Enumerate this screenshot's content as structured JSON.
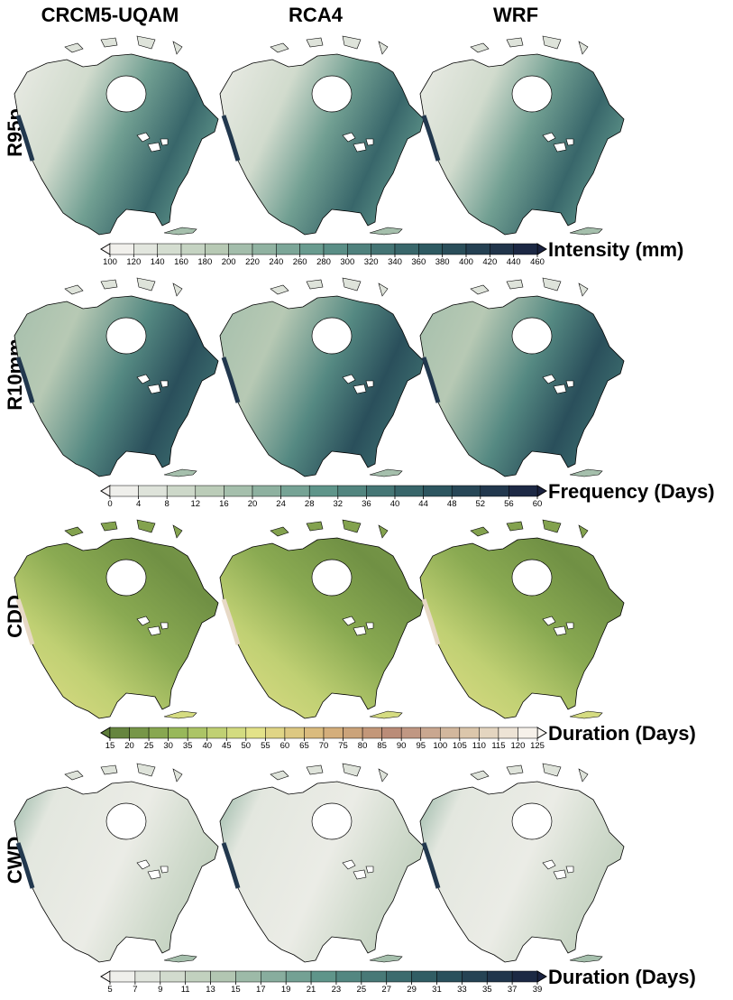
{
  "columns": [
    "CRCM5-UQAM",
    "RCA4",
    "WRF"
  ],
  "rows": [
    {
      "label": "R95p",
      "colorbar": {
        "title": "Intensity (mm)",
        "ticks": [
          100,
          120,
          140,
          160,
          180,
          200,
          220,
          240,
          260,
          280,
          300,
          320,
          340,
          360,
          380,
          400,
          420,
          440,
          460
        ],
        "colors": [
          "#f8f5f3",
          "#b7c9b4",
          "#5f958a",
          "#2e5a62",
          "#1a2240"
        ]
      }
    },
    {
      "label": "R10mm",
      "colorbar": {
        "title": "Frequency (Days)",
        "ticks": [
          0,
          4,
          8,
          12,
          16,
          20,
          24,
          28,
          32,
          36,
          40,
          44,
          48,
          52,
          56,
          60
        ],
        "colors": [
          "#f8f5f3",
          "#b7c9b4",
          "#5f958a",
          "#2e5a62",
          "#1a2240"
        ]
      }
    },
    {
      "label": "CDD",
      "colorbar": {
        "title": "Duration (Days)",
        "ticks": [
          15,
          20,
          25,
          30,
          35,
          40,
          45,
          50,
          55,
          60,
          65,
          70,
          75,
          80,
          85,
          90,
          95,
          100,
          105,
          110,
          115,
          120,
          125
        ],
        "colors": [
          "#5e7d3a",
          "#9bbb5c",
          "#e4e48a",
          "#d8b47c",
          "#b98a78",
          "#d9c4a8",
          "#fbf8f4"
        ]
      }
    },
    {
      "label": "CWD",
      "colorbar": {
        "title": "Duration (Days)",
        "ticks": [
          5,
          7,
          9,
          11,
          13,
          15,
          17,
          19,
          21,
          23,
          25,
          27,
          29,
          31,
          33,
          35,
          37,
          39
        ],
        "colors": [
          "#f8f5f3",
          "#b7c9b4",
          "#5f958a",
          "#2e5a62",
          "#1a2240"
        ]
      }
    }
  ]
}
